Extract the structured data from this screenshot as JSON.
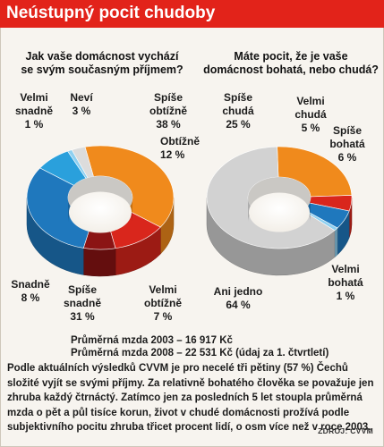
{
  "title": "Neústupný pocit chudoby",
  "chart_data": [
    {
      "type": "pie",
      "title_lines": [
        "Jak vaše domácnost vychází",
        "se svým současným příjmem?"
      ],
      "slices": [
        {
          "label_lines": [
            "Spíše",
            "obtížně"
          ],
          "pct_text": "38 %",
          "value": 38,
          "color": "#f08a1c"
        },
        {
          "label_lines": [
            "Obtížně"
          ],
          "pct_text": "12 %",
          "value": 12,
          "color": "#d9261c"
        },
        {
          "label_lines": [
            "Velmi",
            "obtížně"
          ],
          "pct_text": "7 %",
          "value": 7,
          "color": "#8b1414"
        },
        {
          "label_lines": [
            "Spíše",
            "snadně"
          ],
          "pct_text": "31 %",
          "value": 31,
          "color": "#1f78bd"
        },
        {
          "label_lines": [
            "Snadně"
          ],
          "pct_text": "8 %",
          "value": 8,
          "color": "#2aa0dc"
        },
        {
          "label_lines": [
            "Velmi",
            "snadně"
          ],
          "pct_text": "1 %",
          "value": 1,
          "color": "#8fd0f0"
        },
        {
          "label_lines": [
            "Neví"
          ],
          "pct_text": "3 %",
          "value": 3,
          "color": "#dcdcdc"
        }
      ]
    },
    {
      "type": "pie",
      "title_lines": [
        "Máte pocit, že je vaše",
        "domácnost bohatá, nebo chudá?"
      ],
      "slices": [
        {
          "label_lines": [
            "Spíše",
            "chudá"
          ],
          "pct_text": "25 %",
          "value": 25,
          "color": "#f08a1c"
        },
        {
          "label_lines": [
            "Velmi",
            "chudá"
          ],
          "pct_text": "5 %",
          "value": 5,
          "color": "#d9261c"
        },
        {
          "label_lines": [
            "Spíše",
            "bohatá"
          ],
          "pct_text": "6 %",
          "value": 6,
          "color": "#1f78bd"
        },
        {
          "label_lines": [
            "Velmi",
            "bohatá"
          ],
          "pct_text": "1 %",
          "value": 1,
          "color": "#8fd0f0"
        },
        {
          "label_lines": [
            "Ani jedno"
          ],
          "pct_text": "64 %",
          "value": 64,
          "color": "#d2d2d2"
        }
      ]
    }
  ],
  "footnotes": [
    "Průměrná mzda 2003 – 16 917 Kč",
    "Průměrná mzda 2008 – 22 531 Kč (údaj za 1. čtvrtletí)"
  ],
  "body_text": "Podle aktuálních výsledků CVVM je pro necelé tři pětiny (57 %) Čechů složité vyjít se svými příjmy. Za relativně bohatého člověka se považuje jen zhruba každý čtrnáctý. Zatímco jen za posledních 5 let stoupla průměrná mzda o pět a půl tisíce korun, život v chudé domácnosti prožívá podle subjektivního pocitu zhruba třicet procent lidí, o osm více než v roce 2003.",
  "source": "ZDROJ: CVVM"
}
